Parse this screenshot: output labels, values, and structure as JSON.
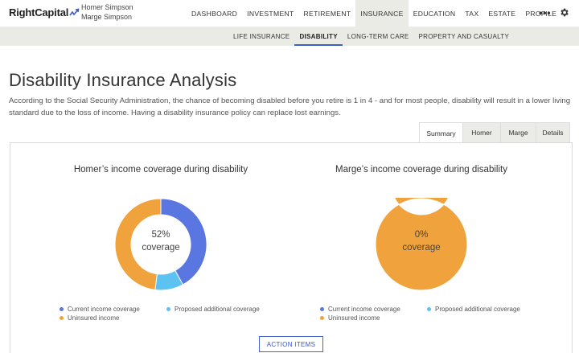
{
  "app": {
    "logo_text": "RightCapital",
    "clients": [
      "Homer Simpson",
      "Marge Simpson"
    ]
  },
  "nav": {
    "items": [
      "DASHBOARD",
      "INVESTMENT",
      "RETIREMENT",
      "INSURANCE",
      "EDUCATION",
      "TAX",
      "ESTATE",
      "PROFILE"
    ],
    "active": "INSURANCE",
    "more_label": "•••"
  },
  "subnav": {
    "items": [
      "LIFE INSURANCE",
      "DISABILITY",
      "LONG-TERM CARE",
      "PROPERTY AND CASUALTY"
    ],
    "active": "DISABILITY"
  },
  "page": {
    "title": "Disability Insurance Analysis",
    "intro": "According to the Social Security Administration, the chance of becoming disabled before you retire is 1 in 4 - and for most people, disability will result in a lower living standard due to the loss of income. Having a disability insurance policy can replace lost earnings."
  },
  "tabs": {
    "items": [
      "Summary",
      "Homer",
      "Marge",
      "Details"
    ],
    "active": "Summary"
  },
  "colors": {
    "current": "#5a76e0",
    "proposed": "#5bc2f2",
    "uninsured": "#f0a33c"
  },
  "chart_data": [
    {
      "type": "pie",
      "title": "Homer’s income coverage during disability",
      "center_value": "52%",
      "center_label": "coverage",
      "labels": [
        "Current income coverage",
        "Proposed additional coverage",
        "Uninsured income"
      ],
      "values": [
        42,
        10,
        48
      ]
    },
    {
      "type": "pie",
      "title": "Marge’s income coverage during disability",
      "center_value": "0%",
      "center_label": "coverage",
      "labels": [
        "Current income coverage",
        "Proposed additional coverage",
        "Uninsured income"
      ],
      "values": [
        0,
        0,
        100
      ]
    }
  ],
  "actions": {
    "action_items_label": "ACTION ITEMS"
  }
}
